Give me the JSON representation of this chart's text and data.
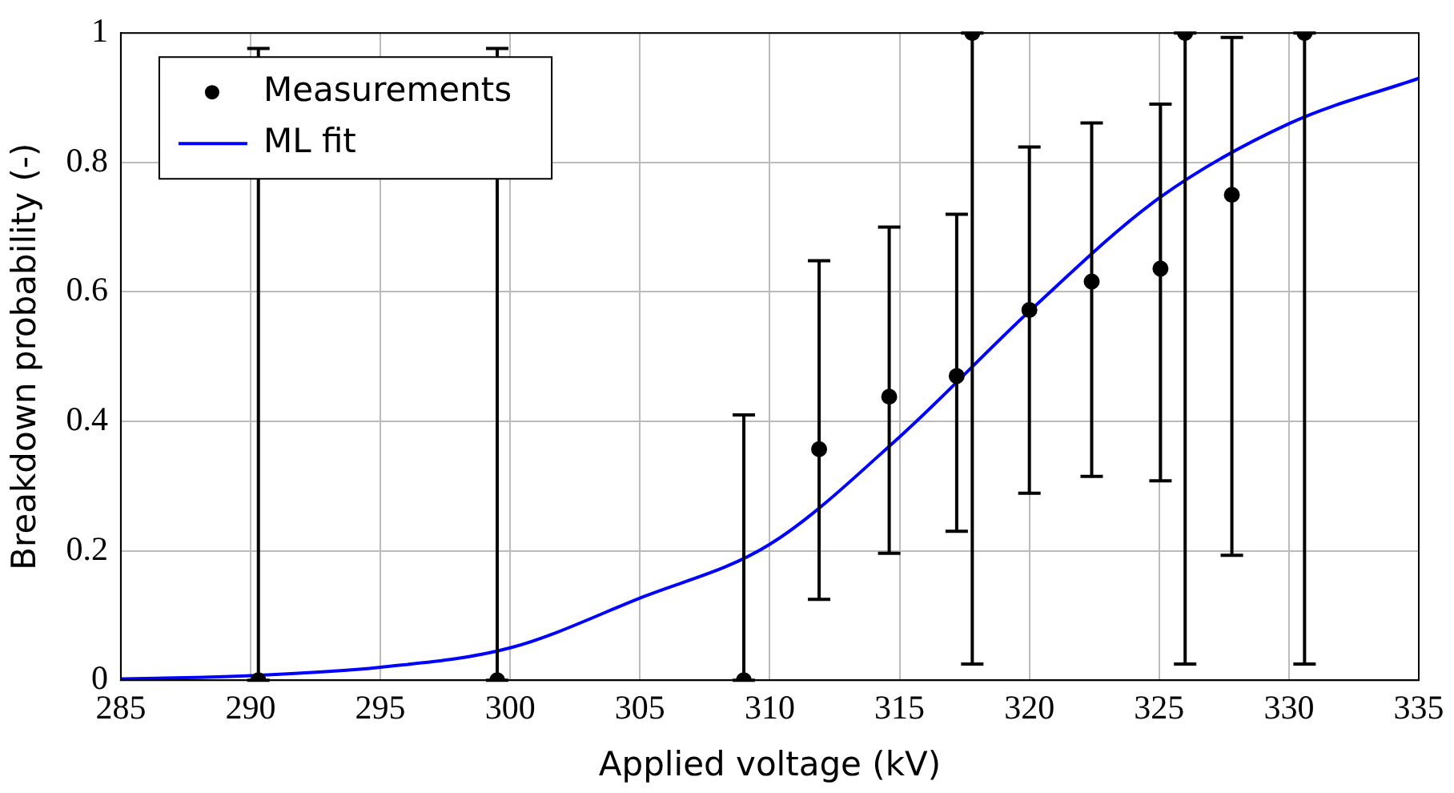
{
  "chart_data": {
    "type": "scatter",
    "xlabel": "Applied voltage (kV)",
    "ylabel": "Breakdown probability (-)",
    "xlim": [
      285,
      335
    ],
    "xticks": [
      285,
      290,
      295,
      300,
      305,
      310,
      315,
      320,
      325,
      330,
      335
    ],
    "ylim": [
      0,
      1
    ],
    "yticks": [
      0,
      0.2,
      0.4,
      0.6,
      0.8,
      1
    ],
    "grid": true,
    "legend": "top left",
    "series": [
      {
        "name": "Measurements",
        "type": "scatter",
        "color": "#000000",
        "marker": "circle",
        "x": [
          290.3,
          299.5,
          309.0,
          311.9,
          314.6,
          317.2,
          317.8,
          320.0,
          322.4,
          325.05,
          326.0,
          327.8,
          330.6
        ],
        "values": [
          0,
          0,
          0,
          0.357,
          0.438,
          0.47,
          1,
          0.572,
          0.616,
          0.636,
          1,
          0.75,
          1
        ],
        "errors": [
          [
            0,
            0.976
          ],
          [
            0,
            0.976
          ],
          [
            0,
            0.41
          ],
          [
            0.125,
            0.648
          ],
          [
            0.196,
            0.7
          ],
          [
            0.23,
            0.72
          ],
          [
            0.025,
            1
          ],
          [
            0.289,
            0.824
          ],
          [
            0.315,
            0.861
          ],
          [
            0.308,
            0.89
          ],
          [
            0.025,
            1
          ],
          [
            0.193,
            0.993
          ],
          [
            0.025,
            1
          ]
        ]
      },
      {
        "name": "ML fit",
        "type": "line",
        "color": "#0000ff",
        "marker": "none",
        "line_style": "solid",
        "x": [
          285,
          290,
          295,
          300,
          305,
          310,
          315,
          320,
          325,
          330,
          335
        ],
        "values": [
          0.002,
          0.007,
          0.02,
          0.05,
          0.127,
          0.21,
          0.376,
          0.57,
          0.745,
          0.86,
          0.93
        ]
      }
    ]
  }
}
